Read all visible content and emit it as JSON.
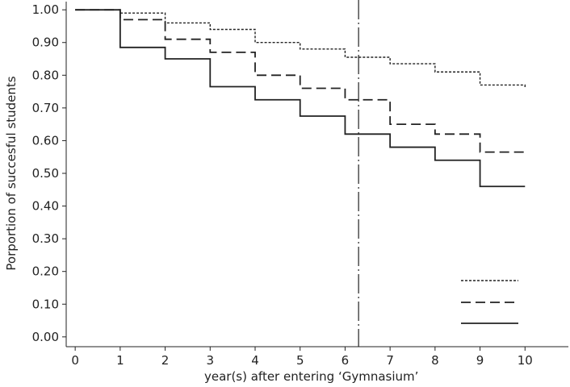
{
  "chart_data": {
    "type": "line",
    "step": true,
    "xlabel": "year(s) after entering ‘Gymnasium’",
    "ylabel": "Porportion of succesful students",
    "xlim": [
      -0.2,
      11
    ],
    "ylim": [
      -0.03,
      1.03
    ],
    "x_ticks": [
      0,
      1,
      2,
      3,
      4,
      5,
      6,
      7,
      8,
      9,
      10
    ],
    "x_tick_labels": [
      "0",
      "1",
      "2",
      "3",
      "4",
      "5",
      "6",
      "7",
      "8",
      "9",
      "10"
    ],
    "y_ticks": [
      0.0,
      0.1,
      0.2,
      0.3,
      0.4,
      0.5,
      0.6,
      0.7,
      0.8,
      0.9,
      1.0
    ],
    "y_tick_labels": [
      "0.00",
      "0.10",
      "0.20",
      "0.30",
      "0.40",
      "0.50",
      "0.60",
      "0.70",
      "0.80",
      "0.90",
      "1.00"
    ],
    "grid": false,
    "legend": {
      "position": "bottom-right",
      "show_text": false
    },
    "reference_line": {
      "x": 6.3,
      "style": "long-dash"
    },
    "series": [
      {
        "style": "dotted",
        "x": [
          0,
          1,
          2,
          3,
          4,
          5,
          6,
          7,
          8,
          9,
          10
        ],
        "y": [
          1.0,
          0.99,
          0.96,
          0.94,
          0.9,
          0.88,
          0.855,
          0.835,
          0.81,
          0.77,
          0.76
        ]
      },
      {
        "style": "dashed",
        "x": [
          0,
          1,
          2,
          3,
          4,
          5,
          6,
          7,
          8,
          9,
          10
        ],
        "y": [
          1.0,
          0.97,
          0.91,
          0.87,
          0.8,
          0.76,
          0.725,
          0.65,
          0.62,
          0.565,
          0.565
        ]
      },
      {
        "style": "solid",
        "x": [
          0,
          1,
          2,
          3,
          4,
          5,
          6,
          7,
          8,
          9,
          10
        ],
        "y": [
          1.0,
          0.885,
          0.85,
          0.765,
          0.725,
          0.675,
          0.62,
          0.58,
          0.54,
          0.46,
          0.46
        ]
      }
    ]
  }
}
